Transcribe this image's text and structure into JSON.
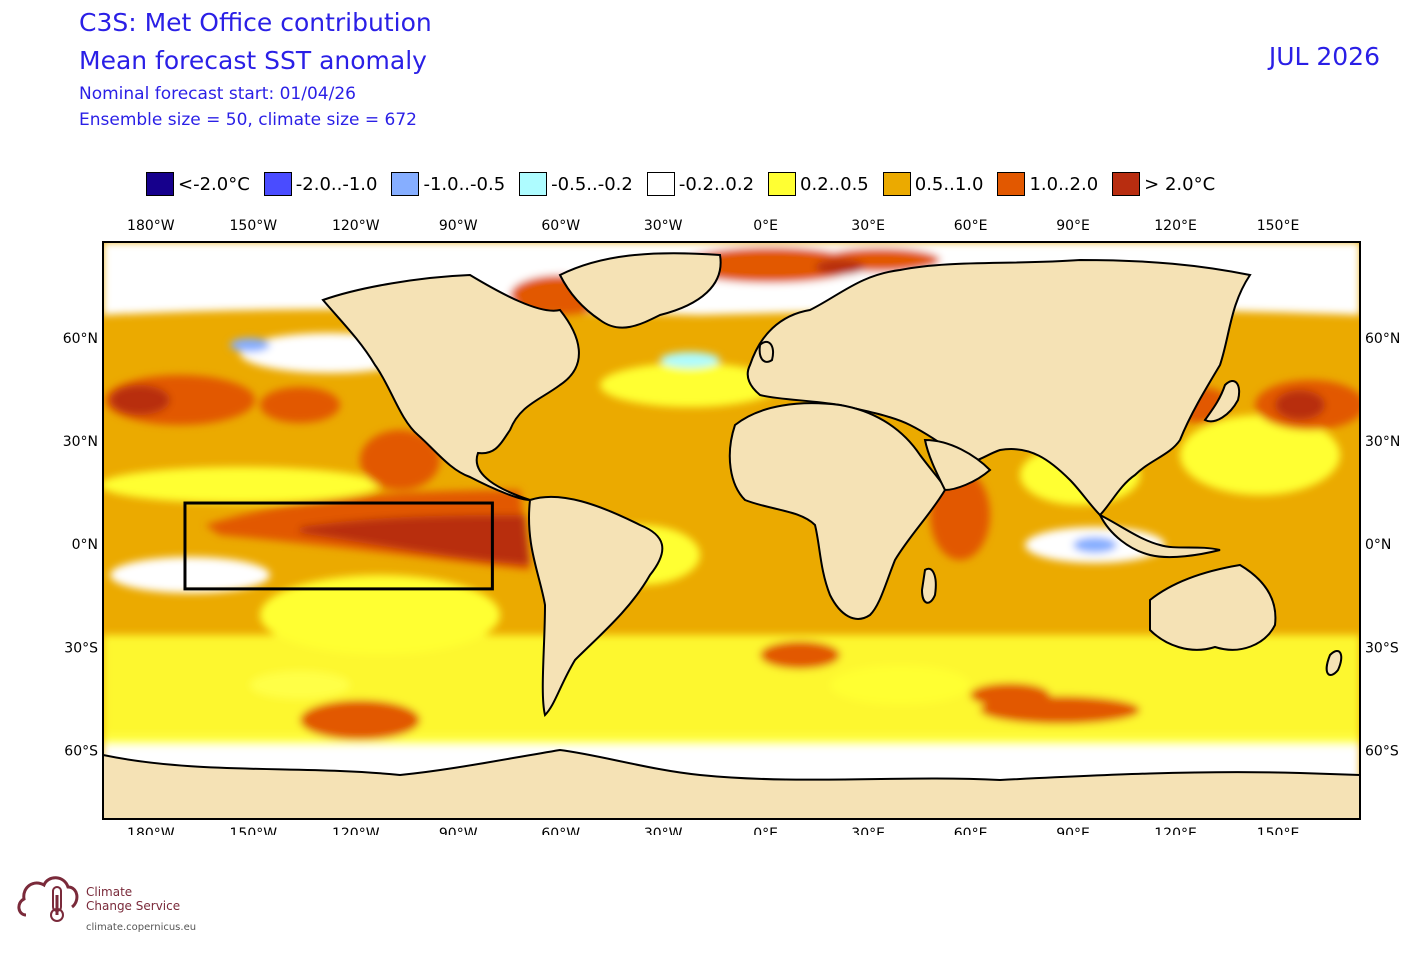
{
  "header": {
    "line1": "C3S: Met Office contribution",
    "line2": "Mean forecast SST anomaly",
    "line3": "Nominal forecast start: 01/04/26",
    "line4": "Ensemble size = 50, climate size = 672",
    "valid_month": "JUL 2026"
  },
  "legend": [
    {
      "label": "<-2.0°C",
      "color": "#16008c"
    },
    {
      "label": "-2.0..-1.0",
      "color": "#4a4cff"
    },
    {
      "label": "-1.0..-0.5",
      "color": "#86aeff"
    },
    {
      "label": "-0.5..-0.2",
      "color": "#aefcff"
    },
    {
      "label": "-0.2..0.2",
      "color": "#ffffff"
    },
    {
      "label": "0.2..0.5",
      "color": "#ffff33"
    },
    {
      "label": "0.5..1.0",
      "color": "#ebaa00"
    },
    {
      "label": "1.0..2.0",
      "color": "#e25800"
    },
    {
      "label": "> 2.0°C",
      "color": "#b82d10"
    }
  ],
  "map": {
    "lon_ticks": [
      "180°W",
      "150°W",
      "120°W",
      "90°W",
      "60°W",
      "30°W",
      "0°E",
      "30°E",
      "60°E",
      "90°E",
      "120°E",
      "150°E"
    ],
    "lat_ticks": [
      "60°N",
      "30°N",
      "0°N",
      "30°S",
      "60°S"
    ],
    "land_color": "#f5e2b5",
    "nino_box": {
      "lon_min": -170,
      "lon_max": -80,
      "lat_min": -13,
      "lat_max": 12
    }
  },
  "footer": {
    "org_line1": "Climate",
    "org_line2": "Change Service",
    "url": "climate.copernicus.eu",
    "logo_icon": "thermometer-cloud-icon"
  }
}
